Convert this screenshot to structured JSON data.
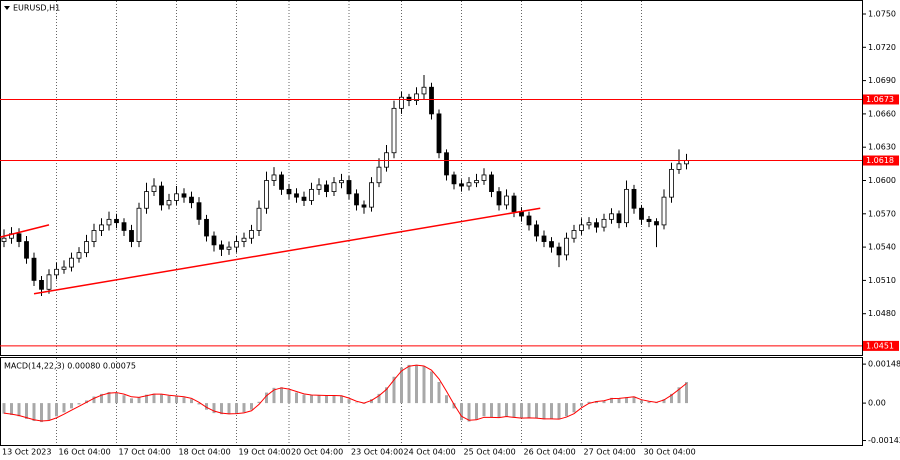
{
  "chart_data": [
    {
      "type": "candlestick",
      "title": "EURUSD,H1",
      "categories": [
        "13 Oct 2023",
        null,
        null,
        null,
        null,
        null,
        null,
        "16 Oct 04:00",
        null,
        null,
        null,
        null,
        null,
        null,
        null,
        "17 Oct 04:00",
        null,
        null,
        null,
        null,
        null,
        null,
        null,
        "18 Oct 04:00",
        null,
        null,
        null,
        null,
        null,
        null,
        null,
        "19 Oct 04:00",
        null,
        null,
        null,
        null,
        null,
        null,
        "20 Oct 04:00",
        null,
        null,
        null,
        null,
        null,
        null,
        null,
        "23 Oct 04:00",
        null,
        null,
        null,
        null,
        null,
        null,
        "24 Oct 04:00",
        null,
        null,
        null,
        null,
        null,
        null,
        null,
        "25 Oct 04:00",
        null,
        null,
        null,
        null,
        null,
        null,
        null,
        "26 Oct 04:00",
        null,
        null,
        null,
        null,
        null,
        null,
        null,
        "27 Oct 04:00",
        null,
        null,
        null,
        null,
        null,
        null,
        null,
        "30 Oct 04:00",
        null,
        null,
        null,
        null,
        null,
        null
      ],
      "open": [
        1.0545,
        1.0548,
        1.0552,
        1.0545,
        1.053,
        1.051,
        1.0502,
        1.0515,
        1.052,
        1.0522,
        1.053,
        1.0535,
        1.0545,
        1.0555,
        1.056,
        1.0565,
        1.0562,
        1.0555,
        1.0545,
        1.0575,
        1.059,
        1.0595,
        1.0578,
        1.0582,
        1.0588,
        1.0585,
        1.058,
        1.0565,
        1.055,
        1.0542,
        1.0538,
        1.054,
        1.0545,
        1.0548,
        1.0555,
        1.0575,
        1.06,
        1.0605,
        1.0592,
        1.0588,
        1.0585,
        1.0582,
        1.0592,
        1.0596,
        1.059,
        1.0598,
        1.06,
        1.0588,
        1.0578,
        1.0576,
        1.0598,
        1.0612,
        1.0625,
        1.0665,
        1.0675,
        1.0672,
        1.0678,
        1.0684,
        1.066,
        1.0625,
        1.0605,
        1.0597,
        1.0595,
        1.0598,
        1.06,
        1.0605,
        1.059,
        1.0578,
        1.0586,
        1.0572,
        1.0568,
        1.056,
        1.055,
        1.0545,
        1.054,
        1.0533,
        1.0548,
        1.0555,
        1.056,
        1.0562,
        1.0558,
        1.0565,
        1.057,
        1.0562,
        1.0592,
        1.0575,
        1.0565,
        1.0563,
        1.056,
        1.0585,
        1.061,
        1.0615
      ],
      "high": [
        1.0556,
        1.0558,
        1.0557,
        1.055,
        1.0535,
        1.0514,
        1.052,
        1.0526,
        1.0528,
        1.0535,
        1.054,
        1.0551,
        1.0561,
        1.0566,
        1.0572,
        1.057,
        1.0566,
        1.056,
        1.058,
        1.0598,
        1.0602,
        1.0599,
        1.0588,
        1.0595,
        1.0593,
        1.059,
        1.0585,
        1.0569,
        1.0554,
        1.0546,
        1.0545,
        1.055,
        1.0553,
        1.056,
        1.0582,
        1.0608,
        1.0612,
        1.0608,
        1.0597,
        1.0593,
        1.059,
        1.0598,
        1.0602,
        1.06,
        1.0603,
        1.0606,
        1.0604,
        1.0592,
        1.0582,
        1.0603,
        1.062,
        1.0632,
        1.0672,
        1.068,
        1.0678,
        1.0684,
        1.0695,
        1.0688,
        1.0664,
        1.0628,
        1.0608,
        1.0601,
        1.0603,
        1.0606,
        1.0611,
        1.0608,
        1.0594,
        1.0592,
        1.0589,
        1.0576,
        1.0572,
        1.0564,
        1.0555,
        1.0549,
        1.0544,
        1.0553,
        1.056,
        1.0566,
        1.0567,
        1.0566,
        1.057,
        1.0575,
        1.0573,
        1.06,
        1.0596,
        1.0578,
        1.0568,
        1.0566,
        1.0592,
        1.0616,
        1.0628,
        1.0624
      ],
      "low": [
        1.054,
        1.0543,
        1.054,
        1.0525,
        1.0505,
        1.0496,
        1.0498,
        1.0511,
        1.0516,
        1.0518,
        1.0526,
        1.0531,
        1.054,
        1.055,
        1.0555,
        1.0557,
        1.055,
        1.054,
        1.054,
        1.057,
        1.0586,
        1.0573,
        1.0574,
        1.0578,
        1.058,
        1.0575,
        1.056,
        1.0545,
        1.0536,
        1.0532,
        1.0533,
        1.0535,
        1.054,
        1.0543,
        1.055,
        1.057,
        1.0595,
        1.0587,
        1.0583,
        1.058,
        1.0577,
        1.0578,
        1.0587,
        1.0585,
        1.0586,
        1.0593,
        1.0583,
        1.0573,
        1.057,
        1.0572,
        1.0594,
        1.0608,
        1.062,
        1.066,
        1.0667,
        1.0668,
        1.0673,
        1.0655,
        1.062,
        1.06,
        1.0592,
        1.059,
        1.0591,
        1.0594,
        1.0596,
        1.0585,
        1.0573,
        1.0574,
        1.0567,
        1.0563,
        1.0555,
        1.0545,
        1.054,
        1.0535,
        1.0522,
        1.0528,
        1.0544,
        1.0551,
        1.0556,
        1.0553,
        1.0554,
        1.0561,
        1.0557,
        1.0558,
        1.057,
        1.056,
        1.0558,
        1.054,
        1.0556,
        1.058,
        1.0606,
        1.061
      ],
      "close": [
        1.0548,
        1.0552,
        1.0545,
        1.053,
        1.051,
        1.0502,
        1.0515,
        1.052,
        1.0522,
        1.053,
        1.0535,
        1.0545,
        1.0555,
        1.056,
        1.0565,
        1.0562,
        1.0555,
        1.0545,
        1.0575,
        1.059,
        1.0595,
        1.0578,
        1.0582,
        1.0588,
        1.0585,
        1.058,
        1.0565,
        1.055,
        1.0542,
        1.0538,
        1.054,
        1.0545,
        1.0548,
        1.0555,
        1.0575,
        1.06,
        1.0605,
        1.0592,
        1.0588,
        1.0585,
        1.0582,
        1.0592,
        1.0596,
        1.059,
        1.0598,
        1.06,
        1.0588,
        1.0578,
        1.0576,
        1.0598,
        1.0612,
        1.0625,
        1.0665,
        1.0675,
        1.0672,
        1.0678,
        1.0684,
        1.066,
        1.0625,
        1.0605,
        1.0597,
        1.0595,
        1.0598,
        1.06,
        1.0605,
        1.059,
        1.0578,
        1.0586,
        1.0572,
        1.0568,
        1.056,
        1.055,
        1.0545,
        1.054,
        1.0533,
        1.0548,
        1.0555,
        1.056,
        1.0562,
        1.0558,
        1.0565,
        1.057,
        1.0562,
        1.0592,
        1.0575,
        1.0565,
        1.0563,
        1.056,
        1.0585,
        1.061,
        1.0615,
        1.0618
      ],
      "color": "#000000",
      "up_color": "#ffffff",
      "ylim": [
        1.04428,
        1.07626
      ],
      "yticks": [
        {
          "value": 1.075,
          "label": "1.0750"
        },
        {
          "value": 1.072,
          "label": "1.0720"
        },
        {
          "value": 1.069,
          "label": "1.0690"
        },
        {
          "value": 1.066,
          "label": "1.0660"
        },
        {
          "value": 1.063,
          "label": "1.0630"
        },
        {
          "value": 1.06,
          "label": "1.0600"
        },
        {
          "value": 1.057,
          "label": "1.0570"
        },
        {
          "value": 1.054,
          "label": "1.0540"
        },
        {
          "value": 1.051,
          "label": "1.0510"
        },
        {
          "value": 1.048,
          "label": "1.0480"
        }
      ],
      "hlines": [
        1.0673,
        1.0618,
        1.0451
      ],
      "hline_color": "#ff0000",
      "trendlines": [
        {
          "x": [
            4,
            71.5
          ],
          "y": [
            1.0498,
            1.0575
          ]
        },
        {
          "x": [
            -0.5,
            6
          ],
          "y": [
            1.0549,
            1.056
          ]
        }
      ],
      "trendline_color": "#ff0000",
      "grid": "vertical"
    },
    {
      "type": "macd",
      "title": "MACD(14,22,3) 0.00080 0.00075",
      "ylim": [
        -0.00159,
        0.00175
      ],
      "yticks": [
        0.00148,
        {
          "value": 0,
          "label": "0.00"
        },
        -0.00142
      ],
      "series": [
        {
          "type": "histogram",
          "color": "#a8a8a8",
          "values": [
            -0.0004,
            -0.00045,
            -0.0005,
            -0.0006,
            -0.00068,
            -0.00072,
            -0.00065,
            -0.0005,
            -0.00035,
            -0.0002,
            -5e-05,
            0.0001,
            0.00025,
            0.00035,
            0.00042,
            0.0004,
            0.0003,
            0.00018,
            0.00022,
            0.00032,
            0.00036,
            0.00033,
            0.00028,
            0.00025,
            0.00022,
            0.00015,
            -5e-05,
            -0.00025,
            -0.00038,
            -0.00042,
            -0.00042,
            -0.0004,
            -0.00035,
            -0.00025,
            5e-05,
            0.0004,
            0.00058,
            0.0006,
            0.0005,
            0.0004,
            0.00032,
            0.0003,
            0.0003,
            0.00028,
            0.0003,
            0.00028,
            0.00015,
            2e-05,
            -3e-05,
            0.00015,
            0.00035,
            0.0006,
            0.001,
            0.00135,
            0.00145,
            0.00145,
            0.0014,
            0.0012,
            0.0008,
            0.0003,
            -0.0002,
            -0.00065,
            -0.0007,
            -0.00062,
            -0.0005,
            -0.00055,
            -0.00055,
            -0.0005,
            -0.00055,
            -0.00058,
            -0.00055,
            -0.00058,
            -0.00062,
            -0.0006,
            -0.00062,
            -0.0005,
            -0.00035,
            -0.0001,
            5e-05,
            8e-05,
            0.0001,
            0.0002,
            0.00018,
            0.00022,
            0.00025,
            0.0001,
            5e-05,
            2e-05,
            0.00015,
            0.00035,
            0.0006,
            0.0008
          ]
        },
        {
          "type": "line",
          "color": "#ff0000",
          "values": [
            -0.00038,
            -0.00042,
            -0.00047,
            -0.00055,
            -0.00063,
            -0.00068,
            -0.00066,
            -0.00056,
            -0.00042,
            -0.00027,
            -0.00012,
            3e-05,
            0.00018,
            0.0003,
            0.00038,
            0.0004,
            0.00034,
            0.00024,
            0.00022,
            0.00028,
            0.00034,
            0.00034,
            0.0003,
            0.00027,
            0.00024,
            0.00018,
            3e-05,
            -0.00016,
            -0.0003,
            -0.00038,
            -0.00041,
            -0.0004,
            -0.00037,
            -0.00029,
            -5e-05,
            0.00028,
            0.0005,
            0.00058,
            0.00053,
            0.00044,
            0.00035,
            0.00031,
            0.0003,
            0.00029,
            0.00029,
            0.00028,
            0.00019,
            7e-05,
            0,
            0.0001,
            0.00028,
            0.00052,
            0.00088,
            0.00122,
            0.0014,
            0.00144,
            0.00141,
            0.00125,
            0.00092,
            0.00045,
            -5e-05,
            -0.0005,
            -0.00065,
            -0.00063,
            -0.00054,
            -0.00054,
            -0.00055,
            -0.00051,
            -0.00054,
            -0.00057,
            -0.00056,
            -0.00057,
            -0.0006,
            -0.0006,
            -0.00061,
            -0.00053,
            -0.0004,
            -0.00018,
            -1e-05,
            6e-05,
            9e-05,
            0.00017,
            0.00018,
            0.00021,
            0.00024,
            0.00013,
            7e-05,
            3e-05,
            0.00012,
            0.0003,
            0.00052,
            0.00075
          ]
        }
      ]
    }
  ]
}
